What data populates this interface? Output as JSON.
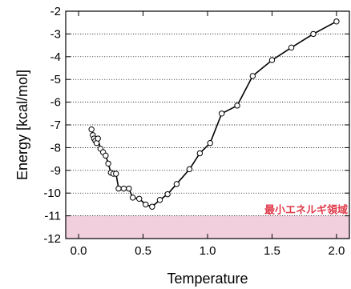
{
  "chart_data": {
    "type": "line",
    "xlabel": "Temperature",
    "ylabel": "Energy [kcal/mol]",
    "xlim": [
      -0.1,
      2.1
    ],
    "ylim": [
      -12,
      -2
    ],
    "xticks": [
      0.0,
      0.5,
      1.0,
      1.5,
      2.0
    ],
    "xtick_labels": [
      "0.0",
      "0.5",
      "1.0",
      "1.5",
      "2.0"
    ],
    "yticks": [
      -2,
      -3,
      -4,
      -5,
      -6,
      -7,
      -8,
      -9,
      -10,
      -11,
      -12
    ],
    "ytick_labels": [
      "-2",
      "-3",
      "-4",
      "-5",
      "-6",
      "-7",
      "-8",
      "-9",
      "-10",
      "-11",
      "-12"
    ],
    "grid": "horizontal-dotted",
    "line_color": "#000000",
    "marker": "open-circle",
    "region": {
      "y_from": -12,
      "y_to": -11,
      "label": "最小エネルギ領域",
      "fill_color": "#f2cfdc",
      "label_color": "#e03a4a"
    },
    "series": [
      {
        "x": [
          0.1,
          0.11,
          0.12,
          0.13,
          0.14,
          0.15,
          0.17,
          0.19,
          0.21,
          0.23,
          0.25,
          0.27,
          0.29,
          0.31,
          0.35,
          0.39,
          0.42,
          0.47,
          0.52,
          0.57,
          0.63,
          0.69,
          0.76,
          0.86,
          0.94,
          1.02,
          1.11,
          1.23,
          1.35,
          1.5,
          1.65,
          1.82,
          2.0
        ],
        "y": [
          -7.2,
          -7.45,
          -7.6,
          -7.7,
          -7.8,
          -7.6,
          -8.05,
          -8.2,
          -8.35,
          -8.7,
          -9.1,
          -9.15,
          -9.15,
          -9.8,
          -9.8,
          -9.8,
          -10.2,
          -10.25,
          -10.5,
          -10.6,
          -10.3,
          -10.05,
          -9.6,
          -8.95,
          -8.25,
          -7.8,
          -6.5,
          -6.15,
          -4.85,
          -4.15,
          -3.6,
          -3.0,
          -2.45
        ]
      }
    ]
  }
}
